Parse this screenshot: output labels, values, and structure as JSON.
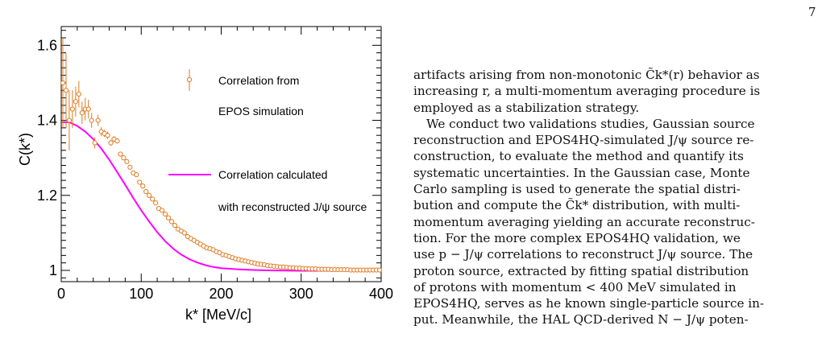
{
  "page_number": "7",
  "text_lines": [
    "artifacts arising from non-monotonic C̃k*(r) behavior as",
    "increasing r, a multi-momentum averaging procedure is",
    "employed as a stabilization strategy.",
    "We conduct two validations studies, Gaussian source",
    "reconstruction and EPOS4HQ-simulated J/ψ source re-",
    "construction, to evaluate the method and quantify its",
    "systematic uncertainties. In the Gaussian case, Monte",
    "Carlo sampling is used to generate the spatial distri-",
    "bution and compute the C̃k* distribution, with multi-",
    "momentum averaging yielding an accurate reconstruc-",
    "tion. For the more complex EPOS4HQ validation, we",
    "use p − J/ψ correlations to reconstruct J/ψ source. The",
    "proton source, extracted by fitting spatial distribution",
    "of protons with momentum < 400 MeV simulated in",
    "EPOS4HQ, serves as he known single-particle source in-",
    "put. Meanwhile, the HAL QCD-derived N − J/ψ poten-"
  ],
  "chart_data": {
    "type": "scatter",
    "xlabel": "k* [MeV/c]",
    "ylabel": "C(k*)",
    "xlim": [
      0,
      400
    ],
    "ylim": [
      0.97,
      1.65
    ],
    "x_ticks": [
      "0",
      "100",
      "200",
      "300",
      "400"
    ],
    "y_ticks": [
      "1",
      "1.2",
      "1.4",
      "1.6"
    ],
    "legend": [
      {
        "label_lines": [
          "Correlation from",
          "EPOS simulation"
        ],
        "marker": "open-circle-errorbar",
        "color": "#e07a1f"
      },
      {
        "label_lines": [
          "Correlation calculated",
          "with reconstructed J/ψ source"
        ],
        "marker": "line",
        "color": "#ff00ff"
      }
    ],
    "series": [
      {
        "name": "Correlation from EPOS simulation",
        "color": "#e07a1f",
        "points": [
          {
            "x": 2,
            "y": 1.5,
            "err": 0.12
          },
          {
            "x": 6,
            "y": 1.48,
            "err": 0.1
          },
          {
            "x": 10,
            "y": 1.4,
            "err": 0.08
          },
          {
            "x": 14,
            "y": 1.43,
            "err": 0.05
          },
          {
            "x": 18,
            "y": 1.45,
            "err": 0.04
          },
          {
            "x": 22,
            "y": 1.47,
            "err": 0.035
          },
          {
            "x": 26,
            "y": 1.42,
            "err": 0.03
          },
          {
            "x": 30,
            "y": 1.43,
            "err": 0.03
          },
          {
            "x": 34,
            "y": 1.43,
            "err": 0.025
          },
          {
            "x": 38,
            "y": 1.4,
            "err": 0.02
          },
          {
            "x": 42,
            "y": 1.34,
            "err": 0.015
          },
          {
            "x": 46,
            "y": 1.4,
            "err": 0.015
          },
          {
            "x": 50,
            "y": 1.37,
            "err": 0.012
          },
          {
            "x": 54,
            "y": 1.365,
            "err": 0.01
          },
          {
            "x": 58,
            "y": 1.36,
            "err": 0.01
          },
          {
            "x": 62,
            "y": 1.34,
            "err": 0.008
          },
          {
            "x": 66,
            "y": 1.35,
            "err": 0.008
          },
          {
            "x": 70,
            "y": 1.345,
            "err": 0.007
          },
          {
            "x": 74,
            "y": 1.31,
            "err": 0.006
          },
          {
            "x": 78,
            "y": 1.3,
            "err": 0.006
          },
          {
            "x": 82,
            "y": 1.29,
            "err": 0.005
          },
          {
            "x": 86,
            "y": 1.275,
            "err": 0.005
          },
          {
            "x": 90,
            "y": 1.26,
            "err": 0.005
          },
          {
            "x": 94,
            "y": 1.255,
            "err": 0.004
          },
          {
            "x": 98,
            "y": 1.235,
            "err": 0.004
          },
          {
            "x": 102,
            "y": 1.225,
            "err": 0.004
          },
          {
            "x": 106,
            "y": 1.21,
            "err": 0.004
          },
          {
            "x": 110,
            "y": 1.2,
            "err": 0.003
          },
          {
            "x": 114,
            "y": 1.19,
            "err": 0.003
          },
          {
            "x": 118,
            "y": 1.18,
            "err": 0.003
          },
          {
            "x": 122,
            "y": 1.165,
            "err": 0.003
          },
          {
            "x": 126,
            "y": 1.16,
            "err": 0.003
          },
          {
            "x": 130,
            "y": 1.15,
            "err": 0.003
          },
          {
            "x": 134,
            "y": 1.14,
            "err": 0.003
          },
          {
            "x": 138,
            "y": 1.13,
            "err": 0.003
          },
          {
            "x": 142,
            "y": 1.12,
            "err": 0.003
          },
          {
            "x": 146,
            "y": 1.11,
            "err": 0.002
          },
          {
            "x": 150,
            "y": 1.105,
            "err": 0.002
          },
          {
            "x": 154,
            "y": 1.1,
            "err": 0.002
          },
          {
            "x": 158,
            "y": 1.09,
            "err": 0.002
          },
          {
            "x": 162,
            "y": 1.085,
            "err": 0.002
          },
          {
            "x": 166,
            "y": 1.08,
            "err": 0.002
          },
          {
            "x": 170,
            "y": 1.075,
            "err": 0.002
          },
          {
            "x": 174,
            "y": 1.07,
            "err": 0.002
          },
          {
            "x": 178,
            "y": 1.065,
            "err": 0.002
          },
          {
            "x": 182,
            "y": 1.06,
            "err": 0.002
          },
          {
            "x": 186,
            "y": 1.058,
            "err": 0.002
          },
          {
            "x": 190,
            "y": 1.055,
            "err": 0.002
          },
          {
            "x": 194,
            "y": 1.05,
            "err": 0.002
          },
          {
            "x": 198,
            "y": 1.047,
            "err": 0.002
          },
          {
            "x": 202,
            "y": 1.042,
            "err": 0.002
          },
          {
            "x": 206,
            "y": 1.04,
            "err": 0.002
          },
          {
            "x": 210,
            "y": 1.037,
            "err": 0.002
          },
          {
            "x": 214,
            "y": 1.034,
            "err": 0.002
          },
          {
            "x": 218,
            "y": 1.031,
            "err": 0.002
          },
          {
            "x": 222,
            "y": 1.029,
            "err": 0.002
          },
          {
            "x": 226,
            "y": 1.027,
            "err": 0.002
          },
          {
            "x": 230,
            "y": 1.025,
            "err": 0.002
          },
          {
            "x": 234,
            "y": 1.023,
            "err": 0.002
          },
          {
            "x": 238,
            "y": 1.021,
            "err": 0.002
          },
          {
            "x": 242,
            "y": 1.019,
            "err": 0.002
          },
          {
            "x": 246,
            "y": 1.017,
            "err": 0.002
          },
          {
            "x": 250,
            "y": 1.016,
            "err": 0.002
          },
          {
            "x": 254,
            "y": 1.015,
            "err": 0.002
          },
          {
            "x": 258,
            "y": 1.013,
            "err": 0.002
          },
          {
            "x": 262,
            "y": 1.012,
            "err": 0.002
          },
          {
            "x": 266,
            "y": 1.011,
            "err": 0.002
          },
          {
            "x": 270,
            "y": 1.01,
            "err": 0.002
          },
          {
            "x": 274,
            "y": 1.009,
            "err": 0.002
          },
          {
            "x": 278,
            "y": 1.009,
            "err": 0.002
          },
          {
            "x": 282,
            "y": 1.008,
            "err": 0.002
          },
          {
            "x": 286,
            "y": 1.007,
            "err": 0.002
          },
          {
            "x": 290,
            "y": 1.007,
            "err": 0.002
          },
          {
            "x": 294,
            "y": 1.006,
            "err": 0.002
          },
          {
            "x": 298,
            "y": 1.006,
            "err": 0.002
          },
          {
            "x": 302,
            "y": 1.005,
            "err": 0.002
          },
          {
            "x": 306,
            "y": 1.005,
            "err": 0.002
          },
          {
            "x": 310,
            "y": 1.004,
            "err": 0.002
          },
          {
            "x": 314,
            "y": 1.004,
            "err": 0.002
          },
          {
            "x": 318,
            "y": 1.004,
            "err": 0.002
          },
          {
            "x": 322,
            "y": 1.003,
            "err": 0.002
          },
          {
            "x": 326,
            "y": 1.003,
            "err": 0.002
          },
          {
            "x": 330,
            "y": 1.003,
            "err": 0.002
          },
          {
            "x": 334,
            "y": 1.003,
            "err": 0.002
          },
          {
            "x": 338,
            "y": 1.002,
            "err": 0.002
          },
          {
            "x": 342,
            "y": 1.002,
            "err": 0.002
          },
          {
            "x": 346,
            "y": 1.002,
            "err": 0.002
          },
          {
            "x": 350,
            "y": 1.002,
            "err": 0.002
          },
          {
            "x": 354,
            "y": 1.002,
            "err": 0.002
          },
          {
            "x": 358,
            "y": 1.002,
            "err": 0.002
          },
          {
            "x": 362,
            "y": 1.001,
            "err": 0.002
          },
          {
            "x": 366,
            "y": 1.001,
            "err": 0.002
          },
          {
            "x": 370,
            "y": 1.001,
            "err": 0.002
          },
          {
            "x": 374,
            "y": 1.001,
            "err": 0.002
          },
          {
            "x": 378,
            "y": 1.001,
            "err": 0.002
          },
          {
            "x": 382,
            "y": 1.001,
            "err": 0.002
          },
          {
            "x": 386,
            "y": 1.001,
            "err": 0.002
          },
          {
            "x": 390,
            "y": 1.001,
            "err": 0.002
          },
          {
            "x": 394,
            "y": 1.001,
            "err": 0.002
          },
          {
            "x": 398,
            "y": 1.001,
            "err": 0.002
          }
        ]
      },
      {
        "name": "Correlation calculated with reconstructed J/ψ source",
        "color": "#ff00ff",
        "points": [
          {
            "x": 0,
            "y": 1.395
          },
          {
            "x": 10,
            "y": 1.395
          },
          {
            "x": 20,
            "y": 1.385
          },
          {
            "x": 30,
            "y": 1.37
          },
          {
            "x": 40,
            "y": 1.35
          },
          {
            "x": 50,
            "y": 1.325
          },
          {
            "x": 60,
            "y": 1.295
          },
          {
            "x": 70,
            "y": 1.262
          },
          {
            "x": 80,
            "y": 1.228
          },
          {
            "x": 90,
            "y": 1.193
          },
          {
            "x": 100,
            "y": 1.16
          },
          {
            "x": 110,
            "y": 1.13
          },
          {
            "x": 120,
            "y": 1.102
          },
          {
            "x": 130,
            "y": 1.078
          },
          {
            "x": 140,
            "y": 1.058
          },
          {
            "x": 150,
            "y": 1.042
          },
          {
            "x": 160,
            "y": 1.03
          },
          {
            "x": 170,
            "y": 1.021
          },
          {
            "x": 180,
            "y": 1.014
          },
          {
            "x": 190,
            "y": 1.009
          },
          {
            "x": 200,
            "y": 1.006
          },
          {
            "x": 220,
            "y": 1.003
          },
          {
            "x": 240,
            "y": 1.001
          },
          {
            "x": 260,
            "y": 1.0
          },
          {
            "x": 300,
            "y": 0.999
          },
          {
            "x": 350,
            "y": 0.999
          },
          {
            "x": 400,
            "y": 0.999
          }
        ]
      }
    ]
  }
}
